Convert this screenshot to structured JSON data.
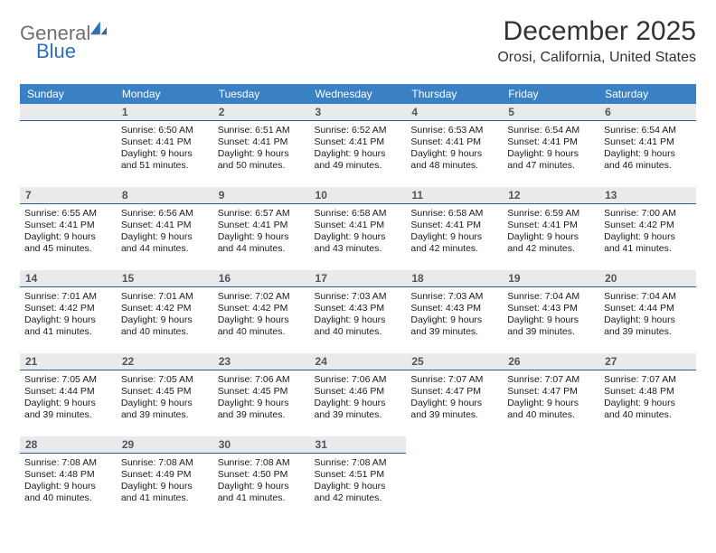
{
  "brand": {
    "general": "General",
    "blue": "Blue"
  },
  "title": "December 2025",
  "location": "Orosi, California, United States",
  "colors": {
    "header_bg": "#3a81c3",
    "header_text": "#ffffff",
    "daynum_bg": "#e9eaeb",
    "daynum_text": "#525457",
    "rule": "#2c5e94",
    "body_text": "#1a1a1a",
    "logo_gray": "#6f6f6f",
    "logo_blue": "#2f6fb3",
    "page_bg": "#ffffff"
  },
  "fonts": {
    "title_size_pt": 30,
    "location_size_pt": 16,
    "weekday_size_pt": 12,
    "daynum_size_pt": 12,
    "body_size_pt": 10.5
  },
  "weekdays": [
    "Sunday",
    "Monday",
    "Tuesday",
    "Wednesday",
    "Thursday",
    "Friday",
    "Saturday"
  ],
  "labels": {
    "sunrise": "Sunrise:",
    "sunset": "Sunset:",
    "daylight": "Daylight:"
  },
  "weeks": [
    [
      null,
      {
        "n": "1",
        "sunrise": "6:50 AM",
        "sunset": "4:41 PM",
        "dl": "9 hours and 51 minutes."
      },
      {
        "n": "2",
        "sunrise": "6:51 AM",
        "sunset": "4:41 PM",
        "dl": "9 hours and 50 minutes."
      },
      {
        "n": "3",
        "sunrise": "6:52 AM",
        "sunset": "4:41 PM",
        "dl": "9 hours and 49 minutes."
      },
      {
        "n": "4",
        "sunrise": "6:53 AM",
        "sunset": "4:41 PM",
        "dl": "9 hours and 48 minutes."
      },
      {
        "n": "5",
        "sunrise": "6:54 AM",
        "sunset": "4:41 PM",
        "dl": "9 hours and 47 minutes."
      },
      {
        "n": "6",
        "sunrise": "6:54 AM",
        "sunset": "4:41 PM",
        "dl": "9 hours and 46 minutes."
      }
    ],
    [
      {
        "n": "7",
        "sunrise": "6:55 AM",
        "sunset": "4:41 PM",
        "dl": "9 hours and 45 minutes."
      },
      {
        "n": "8",
        "sunrise": "6:56 AM",
        "sunset": "4:41 PM",
        "dl": "9 hours and 44 minutes."
      },
      {
        "n": "9",
        "sunrise": "6:57 AM",
        "sunset": "4:41 PM",
        "dl": "9 hours and 44 minutes."
      },
      {
        "n": "10",
        "sunrise": "6:58 AM",
        "sunset": "4:41 PM",
        "dl": "9 hours and 43 minutes."
      },
      {
        "n": "11",
        "sunrise": "6:58 AM",
        "sunset": "4:41 PM",
        "dl": "9 hours and 42 minutes."
      },
      {
        "n": "12",
        "sunrise": "6:59 AM",
        "sunset": "4:41 PM",
        "dl": "9 hours and 42 minutes."
      },
      {
        "n": "13",
        "sunrise": "7:00 AM",
        "sunset": "4:42 PM",
        "dl": "9 hours and 41 minutes."
      }
    ],
    [
      {
        "n": "14",
        "sunrise": "7:01 AM",
        "sunset": "4:42 PM",
        "dl": "9 hours and 41 minutes."
      },
      {
        "n": "15",
        "sunrise": "7:01 AM",
        "sunset": "4:42 PM",
        "dl": "9 hours and 40 minutes."
      },
      {
        "n": "16",
        "sunrise": "7:02 AM",
        "sunset": "4:42 PM",
        "dl": "9 hours and 40 minutes."
      },
      {
        "n": "17",
        "sunrise": "7:03 AM",
        "sunset": "4:43 PM",
        "dl": "9 hours and 40 minutes."
      },
      {
        "n": "18",
        "sunrise": "7:03 AM",
        "sunset": "4:43 PM",
        "dl": "9 hours and 39 minutes."
      },
      {
        "n": "19",
        "sunrise": "7:04 AM",
        "sunset": "4:43 PM",
        "dl": "9 hours and 39 minutes."
      },
      {
        "n": "20",
        "sunrise": "7:04 AM",
        "sunset": "4:44 PM",
        "dl": "9 hours and 39 minutes."
      }
    ],
    [
      {
        "n": "21",
        "sunrise": "7:05 AM",
        "sunset": "4:44 PM",
        "dl": "9 hours and 39 minutes."
      },
      {
        "n": "22",
        "sunrise": "7:05 AM",
        "sunset": "4:45 PM",
        "dl": "9 hours and 39 minutes."
      },
      {
        "n": "23",
        "sunrise": "7:06 AM",
        "sunset": "4:45 PM",
        "dl": "9 hours and 39 minutes."
      },
      {
        "n": "24",
        "sunrise": "7:06 AM",
        "sunset": "4:46 PM",
        "dl": "9 hours and 39 minutes."
      },
      {
        "n": "25",
        "sunrise": "7:07 AM",
        "sunset": "4:47 PM",
        "dl": "9 hours and 39 minutes."
      },
      {
        "n": "26",
        "sunrise": "7:07 AM",
        "sunset": "4:47 PM",
        "dl": "9 hours and 40 minutes."
      },
      {
        "n": "27",
        "sunrise": "7:07 AM",
        "sunset": "4:48 PM",
        "dl": "9 hours and 40 minutes."
      }
    ],
    [
      {
        "n": "28",
        "sunrise": "7:08 AM",
        "sunset": "4:48 PM",
        "dl": "9 hours and 40 minutes."
      },
      {
        "n": "29",
        "sunrise": "7:08 AM",
        "sunset": "4:49 PM",
        "dl": "9 hours and 41 minutes."
      },
      {
        "n": "30",
        "sunrise": "7:08 AM",
        "sunset": "4:50 PM",
        "dl": "9 hours and 41 minutes."
      },
      {
        "n": "31",
        "sunrise": "7:08 AM",
        "sunset": "4:51 PM",
        "dl": "9 hours and 42 minutes."
      },
      null,
      null,
      null
    ]
  ]
}
